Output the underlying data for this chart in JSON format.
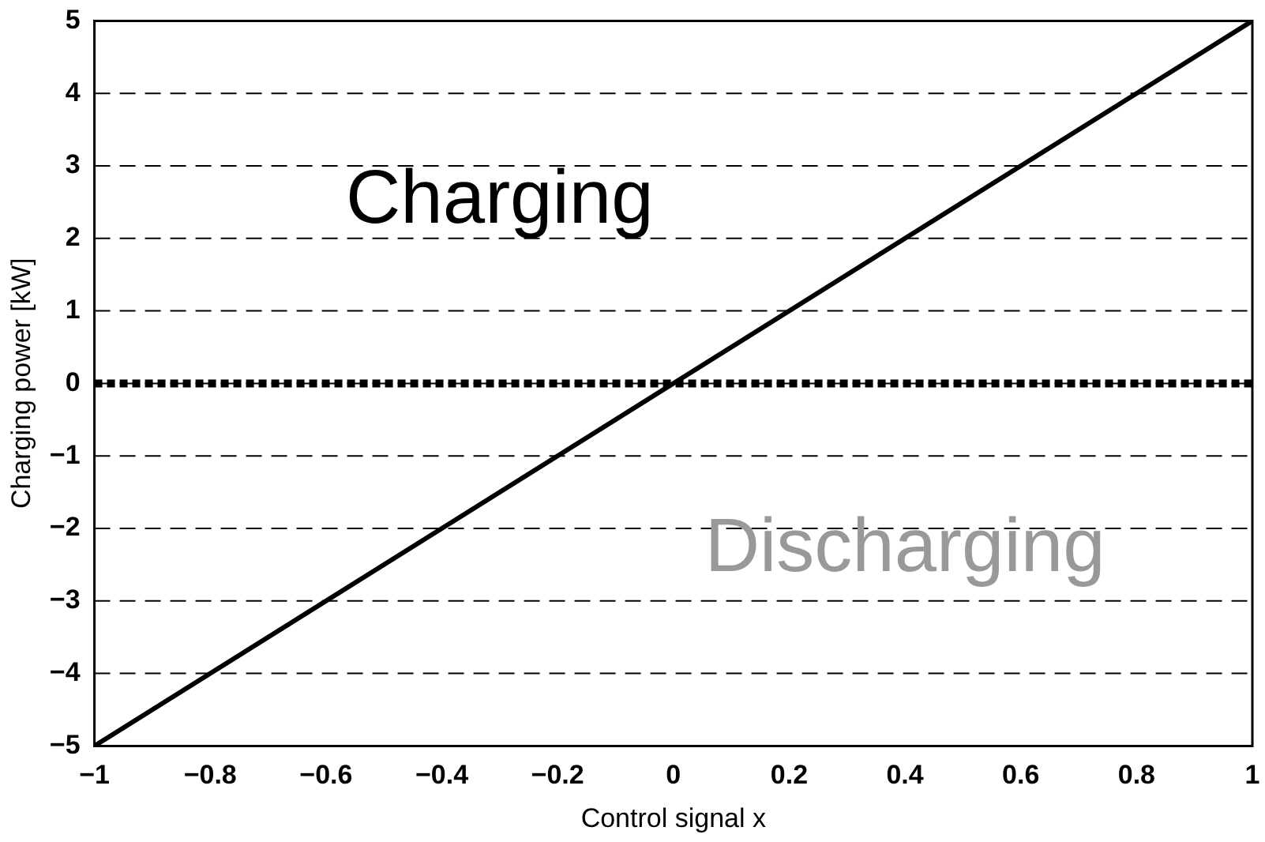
{
  "chart_data": {
    "type": "line",
    "xlabel": "Control signal x",
    "ylabel": "Charging power [kW]",
    "series": [
      {
        "color": "#000000",
        "x": [
          -1,
          1
        ],
        "values": [
          -5,
          5
        ]
      }
    ],
    "xlim": [
      -1,
      1
    ],
    "xticks": [
      -1,
      -0.8,
      -0.6,
      -0.4,
      -0.2,
      0,
      0.2,
      0.4,
      0.6,
      0.8,
      1
    ],
    "ylim": [
      -5,
      5
    ],
    "yticks": [
      -5,
      -4,
      -3,
      -2,
      -1,
      0,
      1,
      2,
      3,
      4,
      5
    ],
    "grid": "y",
    "legend": false,
    "marker": "none",
    "line_style": "solid",
    "ref_lines": [
      {
        "axis": "y",
        "value": 0,
        "color": "#000000",
        "line_style": "dotted"
      }
    ],
    "annotations": [
      "Charging",
      "Discharging"
    ]
  }
}
